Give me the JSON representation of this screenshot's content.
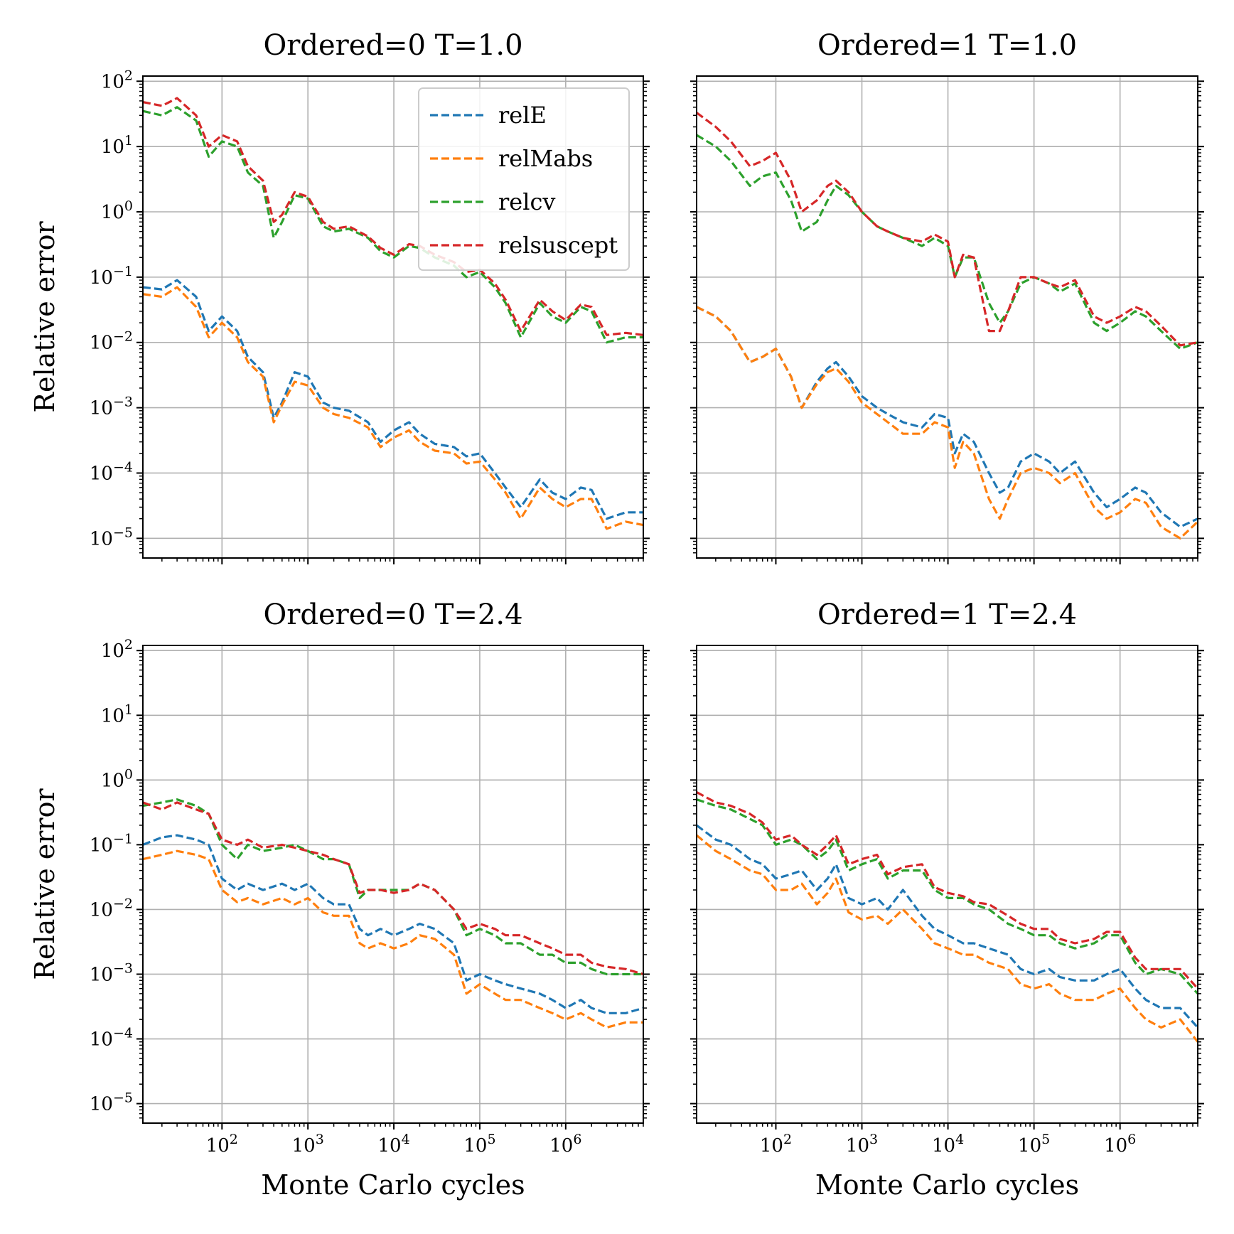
{
  "figure": {
    "ylabel": "Relative error",
    "xlabel": "Monte Carlo cycles",
    "x_tick_labels": [
      "10^2",
      "10^3",
      "10^4",
      "10^5",
      "10^6"
    ],
    "y_tick_labels": [
      "10^2",
      "10^1",
      "10^0",
      "10^-1",
      "10^-2",
      "10^-3",
      "10^-4",
      "10^-5"
    ],
    "xlim": [
      12,
      8000000
    ],
    "ylim": [
      5e-06,
      120
    ],
    "xscale": "log",
    "yscale": "log",
    "grid": true,
    "legend_placement": "upper right of first subplot",
    "line_style": "dashed"
  },
  "series_meta": [
    {
      "name": "relE",
      "color": "#1f77b4"
    },
    {
      "name": "relMabs",
      "color": "#ff7f0e"
    },
    {
      "name": "relcv",
      "color": "#2ca02c"
    },
    {
      "name": "relsuscept",
      "color": "#d62728"
    }
  ],
  "chart_data": [
    {
      "type": "line",
      "title": "Ordered=0 T=1.0",
      "xlabel": "",
      "ylabel": "Relative error",
      "x": [
        12,
        20,
        30,
        50,
        70,
        100,
        150,
        200,
        300,
        400,
        500,
        700,
        1000,
        1500,
        2000,
        3000,
        5000,
        7000,
        10000,
        15000,
        20000,
        30000,
        50000,
        70000,
        100000,
        150000,
        200000,
        300000,
        500000,
        700000,
        1000000,
        1500000,
        2000000,
        3000000,
        5000000,
        8000000
      ],
      "series": [
        {
          "name": "relE",
          "values": [
            0.07,
            0.065,
            0.09,
            0.05,
            0.015,
            0.025,
            0.015,
            0.006,
            0.0035,
            0.0007,
            0.0012,
            0.0035,
            0.003,
            0.0012,
            0.001,
            0.0009,
            0.0006,
            0.0003,
            0.00045,
            0.0006,
            0.0004,
            0.00028,
            0.00025,
            0.00018,
            0.0002,
            0.0001,
            6e-05,
            3e-05,
            8e-05,
            5e-05,
            4e-05,
            6e-05,
            5.5e-05,
            2e-05,
            2.5e-05,
            2.5e-05
          ]
        },
        {
          "name": "relMabs",
          "values": [
            0.055,
            0.05,
            0.07,
            0.035,
            0.012,
            0.02,
            0.012,
            0.005,
            0.003,
            0.0006,
            0.0011,
            0.0025,
            0.0022,
            0.001,
            0.0008,
            0.0007,
            0.0005,
            0.00025,
            0.00035,
            0.00045,
            0.0003,
            0.00022,
            0.0002,
            0.00014,
            0.00015,
            8e-05,
            5e-05,
            2e-05,
            6e-05,
            4e-05,
            3e-05,
            4e-05,
            4e-05,
            1.4e-05,
            1.8e-05,
            1.6e-05
          ]
        },
        {
          "name": "relcv",
          "values": [
            35,
            30,
            40,
            25,
            7,
            12,
            10,
            4,
            2.5,
            0.4,
            0.7,
            1.8,
            1.6,
            0.6,
            0.5,
            0.55,
            0.4,
            0.25,
            0.2,
            0.3,
            0.28,
            0.2,
            0.15,
            0.1,
            0.12,
            0.07,
            0.04,
            0.012,
            0.04,
            0.025,
            0.02,
            0.035,
            0.03,
            0.01,
            0.012,
            0.012
          ]
        },
        {
          "name": "relsuscept",
          "values": [
            48,
            42,
            55,
            30,
            10,
            15,
            12,
            5,
            3,
            0.7,
            0.9,
            2,
            1.7,
            0.7,
            0.55,
            0.6,
            0.42,
            0.28,
            0.22,
            0.32,
            0.3,
            0.22,
            0.17,
            0.12,
            0.13,
            0.08,
            0.045,
            0.015,
            0.045,
            0.03,
            0.022,
            0.038,
            0.035,
            0.013,
            0.014,
            0.013
          ]
        }
      ]
    },
    {
      "type": "line",
      "title": "Ordered=1 T=1.0",
      "xlabel": "",
      "ylabel": "",
      "x": [
        12,
        20,
        30,
        50,
        70,
        100,
        150,
        200,
        300,
        400,
        500,
        700,
        1000,
        1500,
        2000,
        3000,
        5000,
        7000,
        10000,
        12000,
        15000,
        20000,
        30000,
        40000,
        50000,
        70000,
        100000,
        150000,
        200000,
        300000,
        500000,
        700000,
        1000000,
        1500000,
        2000000,
        3000000,
        5000000,
        8000000
      ],
      "series": [
        {
          "name": "relE",
          "values": [
            0.035,
            0.025,
            0.015,
            0.005,
            0.006,
            0.008,
            0.003,
            0.001,
            0.0025,
            0.004,
            0.005,
            0.003,
            0.0015,
            0.001,
            0.0008,
            0.0006,
            0.0005,
            0.0008,
            0.0007,
            0.0002,
            0.0004,
            0.0003,
            0.0001,
            5e-05,
            6e-05,
            0.00015,
            0.0002,
            0.00015,
            0.0001,
            0.00015,
            5e-05,
            3e-05,
            4e-05,
            6e-05,
            5e-05,
            2.5e-05,
            1.5e-05,
            2e-05
          ]
        },
        {
          "name": "relMabs",
          "values": [
            0.035,
            0.025,
            0.015,
            0.005,
            0.006,
            0.008,
            0.003,
            0.001,
            0.0023,
            0.0035,
            0.004,
            0.0025,
            0.0012,
            0.0008,
            0.0006,
            0.0004,
            0.0004,
            0.0006,
            0.0005,
            0.00012,
            0.0003,
            0.0002,
            4e-05,
            2e-05,
            4e-05,
            0.0001,
            0.00012,
            0.0001,
            7e-05,
            0.0001,
            3e-05,
            2e-05,
            2.5e-05,
            4e-05,
            3.5e-05,
            1.5e-05,
            1e-05,
            1.8e-05
          ]
        },
        {
          "name": "relcv",
          "values": [
            15,
            10,
            6,
            2.5,
            3.5,
            4,
            1.5,
            0.5,
            0.7,
            1.5,
            2.5,
            1.8,
            1,
            0.6,
            0.5,
            0.4,
            0.3,
            0.4,
            0.3,
            0.1,
            0.2,
            0.2,
            0.04,
            0.02,
            0.03,
            0.08,
            0.1,
            0.08,
            0.06,
            0.08,
            0.02,
            0.015,
            0.02,
            0.03,
            0.025,
            0.015,
            0.008,
            0.01
          ]
        },
        {
          "name": "relsuscept",
          "values": [
            33,
            20,
            12,
            5,
            6,
            8,
            3,
            1,
            1.5,
            2.5,
            3,
            2,
            1,
            0.6,
            0.5,
            0.4,
            0.35,
            0.45,
            0.35,
            0.1,
            0.22,
            0.2,
            0.015,
            0.015,
            0.03,
            0.1,
            0.1,
            0.08,
            0.07,
            0.09,
            0.025,
            0.02,
            0.025,
            0.035,
            0.03,
            0.018,
            0.009,
            0.01
          ]
        }
      ]
    },
    {
      "type": "line",
      "title": "Ordered=0 T=2.4",
      "xlabel": "Monte Carlo cycles",
      "ylabel": "Relative error",
      "x": [
        12,
        20,
        30,
        50,
        70,
        100,
        150,
        200,
        300,
        500,
        700,
        1000,
        1500,
        2000,
        3000,
        4000,
        5000,
        7000,
        10000,
        15000,
        20000,
        30000,
        50000,
        70000,
        100000,
        150000,
        200000,
        300000,
        500000,
        700000,
        1000000,
        1500000,
        2000000,
        3000000,
        5000000,
        8000000
      ],
      "series": [
        {
          "name": "relE",
          "values": [
            0.1,
            0.13,
            0.14,
            0.12,
            0.1,
            0.03,
            0.02,
            0.025,
            0.02,
            0.025,
            0.02,
            0.025,
            0.015,
            0.012,
            0.012,
            0.005,
            0.004,
            0.005,
            0.004,
            0.005,
            0.006,
            0.005,
            0.003,
            0.0008,
            0.001,
            0.0008,
            0.0007,
            0.0006,
            0.0005,
            0.0004,
            0.0003,
            0.0004,
            0.0003,
            0.00025,
            0.00025,
            0.0003
          ]
        },
        {
          "name": "relMabs",
          "values": [
            0.06,
            0.07,
            0.08,
            0.07,
            0.06,
            0.02,
            0.013,
            0.015,
            0.012,
            0.015,
            0.012,
            0.015,
            0.009,
            0.008,
            0.008,
            0.003,
            0.0025,
            0.003,
            0.0025,
            0.003,
            0.004,
            0.0035,
            0.002,
            0.0005,
            0.0007,
            0.0005,
            0.0004,
            0.0004,
            0.0003,
            0.00025,
            0.0002,
            0.00025,
            0.0002,
            0.00015,
            0.00018,
            0.00018
          ]
        },
        {
          "name": "relcv",
          "values": [
            0.4,
            0.45,
            0.5,
            0.4,
            0.3,
            0.1,
            0.06,
            0.1,
            0.08,
            0.09,
            0.1,
            0.08,
            0.06,
            0.06,
            0.05,
            0.015,
            0.02,
            0.02,
            0.02,
            0.02,
            0.025,
            0.02,
            0.01,
            0.004,
            0.005,
            0.004,
            0.003,
            0.003,
            0.002,
            0.002,
            0.0015,
            0.0015,
            0.0012,
            0.001,
            0.001,
            0.001
          ]
        },
        {
          "name": "relsuscept",
          "values": [
            0.45,
            0.35,
            0.45,
            0.35,
            0.3,
            0.12,
            0.1,
            0.12,
            0.09,
            0.1,
            0.09,
            0.08,
            0.07,
            0.06,
            0.05,
            0.018,
            0.02,
            0.02,
            0.018,
            0.02,
            0.025,
            0.02,
            0.01,
            0.005,
            0.006,
            0.005,
            0.004,
            0.004,
            0.003,
            0.0025,
            0.002,
            0.002,
            0.0015,
            0.0013,
            0.0012,
            0.001
          ]
        }
      ]
    },
    {
      "type": "line",
      "title": "Ordered=1 T=2.4",
      "xlabel": "Monte Carlo cycles",
      "ylabel": "",
      "x": [
        12,
        20,
        30,
        50,
        70,
        100,
        150,
        200,
        300,
        400,
        500,
        700,
        1000,
        1500,
        2000,
        3000,
        5000,
        7000,
        10000,
        15000,
        20000,
        30000,
        50000,
        70000,
        100000,
        150000,
        200000,
        300000,
        500000,
        700000,
        1000000,
        1500000,
        2000000,
        3000000,
        5000000,
        8000000
      ],
      "series": [
        {
          "name": "relE",
          "values": [
            0.2,
            0.12,
            0.1,
            0.06,
            0.05,
            0.03,
            0.035,
            0.04,
            0.02,
            0.03,
            0.05,
            0.015,
            0.012,
            0.015,
            0.01,
            0.02,
            0.008,
            0.005,
            0.004,
            0.003,
            0.003,
            0.0025,
            0.002,
            0.0012,
            0.001,
            0.0012,
            0.0009,
            0.0008,
            0.0008,
            0.001,
            0.0012,
            0.0006,
            0.0004,
            0.0003,
            0.0003,
            0.00015
          ]
        },
        {
          "name": "relMabs",
          "values": [
            0.14,
            0.08,
            0.06,
            0.04,
            0.035,
            0.02,
            0.02,
            0.025,
            0.012,
            0.018,
            0.03,
            0.009,
            0.007,
            0.008,
            0.006,
            0.01,
            0.005,
            0.003,
            0.0025,
            0.002,
            0.002,
            0.0015,
            0.0012,
            0.0007,
            0.0006,
            0.0007,
            0.0005,
            0.0004,
            0.0004,
            0.0005,
            0.0006,
            0.0003,
            0.0002,
            0.00015,
            0.0002,
            9e-05
          ]
        },
        {
          "name": "relcv",
          "values": [
            0.5,
            0.4,
            0.35,
            0.25,
            0.2,
            0.1,
            0.12,
            0.1,
            0.06,
            0.08,
            0.12,
            0.04,
            0.05,
            0.06,
            0.03,
            0.04,
            0.04,
            0.02,
            0.015,
            0.015,
            0.012,
            0.01,
            0.006,
            0.005,
            0.004,
            0.004,
            0.003,
            0.0025,
            0.003,
            0.004,
            0.004,
            0.0015,
            0.001,
            0.0012,
            0.001,
            0.0005
          ]
        },
        {
          "name": "relsuscept",
          "values": [
            0.65,
            0.45,
            0.4,
            0.3,
            0.22,
            0.12,
            0.14,
            0.1,
            0.07,
            0.1,
            0.14,
            0.05,
            0.06,
            0.07,
            0.035,
            0.045,
            0.05,
            0.022,
            0.018,
            0.016,
            0.013,
            0.012,
            0.008,
            0.006,
            0.005,
            0.005,
            0.0035,
            0.003,
            0.0035,
            0.0045,
            0.0045,
            0.0018,
            0.0012,
            0.0012,
            0.0012,
            0.0006
          ]
        }
      ]
    }
  ]
}
